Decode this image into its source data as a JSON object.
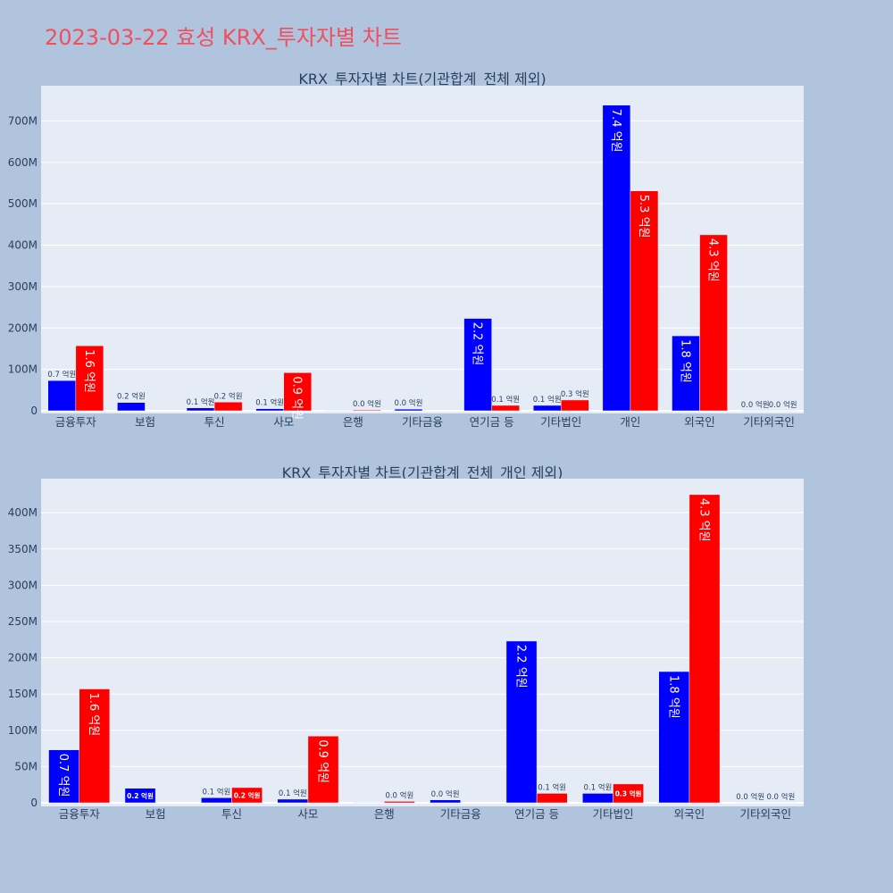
{
  "title": "2023-03-22 효성 KRX_투자자별 차트",
  "colors": {
    "background": "#b0c4de",
    "plot_bg": "#e5ecf6",
    "title": "#ef4f5f",
    "buy": "#0000ff",
    "sell": "#ff0000",
    "text": "#2a3f5f"
  },
  "chart_data": [
    {
      "type": "bar",
      "title": "KRX_투자자별 차트(기관합계_전체 제외)",
      "categories": [
        "금융투자",
        "보험",
        "투신",
        "사모",
        "은행",
        "기타금융",
        "연기금 등",
        "기타법인",
        "개인",
        "외국인",
        "기타외국인"
      ],
      "ylim": [
        0,
        785
      ],
      "y_unit": "M",
      "y_ticks": [
        0,
        100,
        200,
        300,
        400,
        500,
        600,
        700
      ],
      "y_tick_labels": [
        "0",
        "100M",
        "200M",
        "300M",
        "400M",
        "500M",
        "600M",
        "700M"
      ],
      "series": [
        {
          "color": "#0000ff",
          "values": [
            73,
            20,
            7,
            5,
            0.5,
            4,
            223,
            13,
            738,
            181,
            0.3
          ],
          "labels": [
            "0.7 억원",
            "0.2 억원",
            "0.1 억원",
            "0.1 억원",
            "",
            "0.0 억원",
            "2.2 억원",
            "0.1 억원",
            "7.4 억원",
            "1.8 억원",
            "0.0 억원"
          ]
        },
        {
          "color": "#ff0000",
          "values": [
            157,
            0,
            21,
            92,
            2,
            0,
            13,
            26,
            531,
            425,
            0.3
          ],
          "labels": [
            "1.6 억원",
            "",
            "0.2 억원",
            "0.9 억원",
            "0.0 억원",
            "",
            "0.1 억원",
            "0.3 억원",
            "5.3 억원",
            "4.3 억원",
            "0.0 억원"
          ]
        }
      ]
    },
    {
      "type": "bar",
      "title": "KRX_투자자별 차트(기관합계_전체_개인 제외)",
      "categories": [
        "금융투자",
        "보험",
        "투신",
        "사모",
        "은행",
        "기타금융",
        "연기금 등",
        "기타법인",
        "외국인",
        "기타외국인"
      ],
      "ylim": [
        0,
        447
      ],
      "y_unit": "M",
      "y_ticks": [
        0,
        50,
        100,
        150,
        200,
        250,
        300,
        350,
        400
      ],
      "y_tick_labels": [
        "0",
        "50M",
        "100M",
        "150M",
        "200M",
        "250M",
        "300M",
        "350M",
        "400M"
      ],
      "series": [
        {
          "color": "#0000ff",
          "values": [
            73,
            20,
            7,
            5,
            0.5,
            4,
            223,
            13,
            181,
            0.3
          ],
          "labels": [
            "0.7 억원",
            "0.2 억원",
            "0.1 억원",
            "0.1 억원",
            "",
            "0.0 억원",
            "2.2 억원",
            "0.1 억원",
            "1.8 억원",
            "0.0 억원"
          ]
        },
        {
          "color": "#ff0000",
          "values": [
            157,
            0,
            21,
            92,
            2,
            0,
            13,
            26,
            425,
            0.3
          ],
          "labels": [
            "1.6 억원",
            "",
            "0.2 억원",
            "0.9 억원",
            "0.0 억원",
            "",
            "0.1 억원",
            "0.3 억원",
            "4.3 억원",
            "0.0 억원"
          ]
        }
      ]
    }
  ]
}
